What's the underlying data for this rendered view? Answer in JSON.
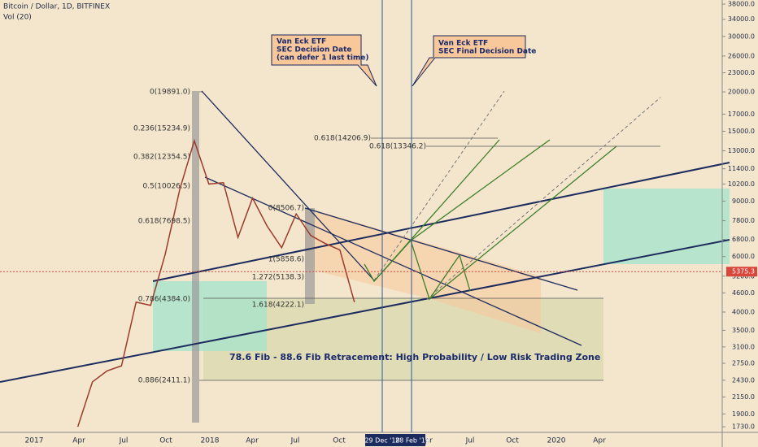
{
  "chart_data": {
    "type": "line",
    "title": "Bitcoin / Dollar, 1D, BITFINEX",
    "subtitle": "Vol (20)",
    "log_scale": true,
    "color": "#9c3b2b",
    "x": [
      "2017-04",
      "2017-05",
      "2017-06",
      "2017-07",
      "2017-08",
      "2017-09",
      "2017-10",
      "2017-11",
      "2017-12",
      "2018-01",
      "2018-02",
      "2018-03",
      "2018-04",
      "2018-05",
      "2018-06",
      "2018-07",
      "2018-08",
      "2018-09",
      "2018-10",
      "2018-11"
    ],
    "values": [
      1730,
      2400,
      2600,
      2700,
      4300,
      4200,
      6100,
      9800,
      14000,
      10200,
      10300,
      6900,
      9200,
      7500,
      6400,
      8200,
      7000,
      6600,
      6300,
      4300
    ],
    "ylim": [
      1660,
      39150
    ],
    "yticks": [
      {
        "value": 38000,
        "label": "38000.0"
      },
      {
        "value": 34000,
        "label": "34000.0"
      },
      {
        "value": 30000,
        "label": "30000.0"
      },
      {
        "value": 26000,
        "label": "26000.0"
      },
      {
        "value": 23000,
        "label": "23000.0"
      },
      {
        "value": 20000,
        "label": "20000.0"
      },
      {
        "value": 17000,
        "label": "17000.0"
      },
      {
        "value": 15000,
        "label": "15000.0"
      },
      {
        "value": 13000,
        "label": "13000.0"
      },
      {
        "value": 11400,
        "label": "11400.0"
      },
      {
        "value": 10200,
        "label": "10200.0"
      },
      {
        "value": 9000,
        "label": "9000.0"
      },
      {
        "value": 7800,
        "label": "7800.0"
      },
      {
        "value": 6800,
        "label": "6800.0"
      },
      {
        "value": 6000,
        "label": "6000.0"
      },
      {
        "value": 5200,
        "label": "5200.0"
      },
      {
        "value": 4600,
        "label": "4600.0"
      },
      {
        "value": 4000,
        "label": "4000.0"
      },
      {
        "value": 3500,
        "label": "3500.0"
      },
      {
        "value": 3100,
        "label": "3100.0"
      },
      {
        "value": 2750,
        "label": "2750.0"
      },
      {
        "value": 2430,
        "label": "2430.0"
      },
      {
        "value": 2150,
        "label": "2150.0"
      },
      {
        "value": 1900,
        "label": "1900.0"
      },
      {
        "value": 1730,
        "label": "1730.0"
      }
    ],
    "current_price": {
      "value": 5375.3,
      "label": "5375.3"
    },
    "time_labels": [
      "2017",
      "Apr",
      "Jul",
      "Oct",
      "2018",
      "Apr",
      "Jul",
      "Oct",
      "Apr",
      "Jul",
      "Oct",
      "2020",
      "Apr"
    ],
    "date_markers": [
      "29 Dec '18",
      "28 Feb '19"
    ],
    "callouts": [
      [
        "Van Eck ETF",
        "SEC Decision Date",
        "(can defer 1 last time)"
      ],
      [
        "Van Eck ETF",
        "SEC Final Decision Date"
      ]
    ],
    "fib_labels": [
      "0(19891.0)",
      "0.236(15234.9)",
      "0.382(12354.5)",
      "0.5(10026.5)",
      "0.618(7698.5)",
      "0.786(4384.0)",
      "0.886(2411.1)",
      "0(8506.7)",
      "1(5858.6)",
      "1.272(5138.3)",
      "1.618(4222.1)",
      "0.618(14206.9)",
      "0.618(13346.2)"
    ],
    "zone_label": "78.6 Fib - 88.6 Fib Retracement:  High Probability / Low Risk Trading Zone"
  }
}
